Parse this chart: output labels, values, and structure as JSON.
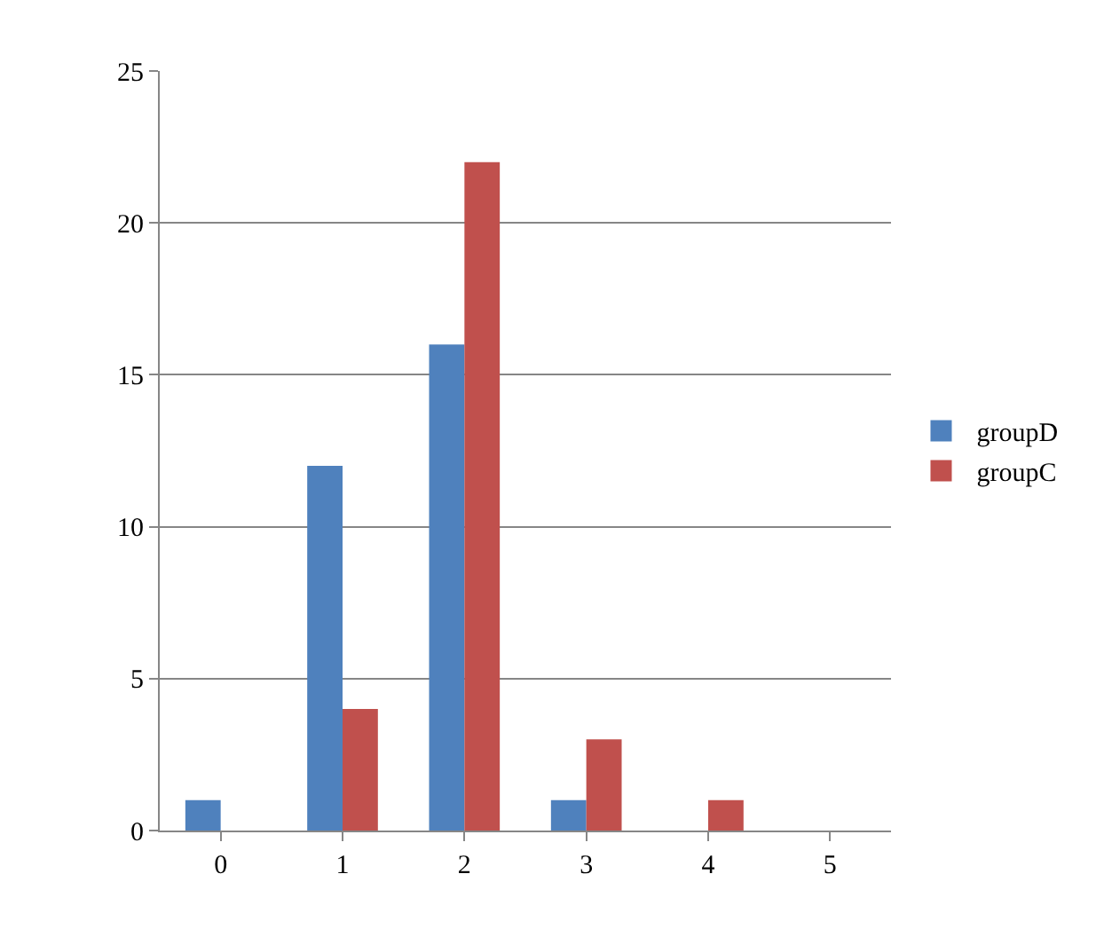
{
  "chart_data": {
    "type": "bar",
    "categories": [
      "0",
      "1",
      "2",
      "3",
      "4",
      "5"
    ],
    "series": [
      {
        "name": "groupD",
        "color": "#4f81bd",
        "values": [
          1,
          12,
          16,
          1,
          0,
          0
        ]
      },
      {
        "name": "groupC",
        "color": "#c0504d",
        "values": [
          0,
          4,
          22,
          3,
          1,
          0
        ]
      }
    ],
    "ylim": [
      0,
      25
    ],
    "yticks": [
      0,
      5,
      10,
      15,
      20,
      25
    ],
    "grid": "y",
    "legend": "right"
  }
}
